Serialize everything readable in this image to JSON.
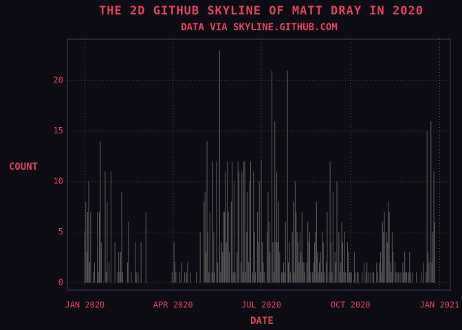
{
  "chart_data": {
    "type": "bar",
    "title": "THE 2D GITHUB SKYLINE OF MATT DRAY IN 2020",
    "subtitle": "DATA VIA SKYLINE.GITHUB.COM",
    "x_label": "DATE",
    "y_label": "COUNT",
    "color": "#5a5a5a",
    "grid": true,
    "xlim": [
      -18,
      377
    ],
    "ylim": [
      -0.75,
      24.1
    ],
    "yticks": [
      0,
      5,
      10,
      15,
      20
    ],
    "xticks": [
      {
        "value": 0,
        "label": "JAN 2020"
      },
      {
        "value": 91,
        "label": "APR 2020"
      },
      {
        "value": 182,
        "label": "JUL 2020"
      },
      {
        "value": 274,
        "label": "OCT 2020"
      },
      {
        "value": 366,
        "label": "JAN 2021"
      }
    ],
    "values": [
      5,
      8,
      3,
      7,
      10,
      2,
      7,
      0,
      0,
      1,
      2,
      0,
      0,
      7,
      1,
      7,
      14,
      4,
      0,
      0,
      0,
      11,
      1,
      8,
      0,
      2,
      0,
      11,
      0,
      0,
      0,
      4,
      0,
      0,
      1,
      3,
      1,
      3,
      9,
      1,
      0,
      0,
      0,
      0,
      2,
      6,
      0,
      0,
      1,
      0,
      0,
      0,
      4,
      1,
      0,
      1,
      0,
      0,
      4,
      0,
      0,
      0,
      0,
      7,
      0,
      0,
      0,
      0,
      0,
      0,
      0,
      0,
      0,
      0,
      0,
      0,
      0,
      0,
      0,
      0,
      0,
      0,
      0,
      0,
      0,
      0,
      0,
      0,
      0,
      0,
      1,
      0,
      4,
      2,
      1,
      0,
      0,
      0,
      1,
      0,
      2,
      0,
      0,
      1,
      0,
      1,
      2,
      0,
      0,
      1,
      0,
      0,
      0,
      0,
      0,
      1,
      0,
      0,
      0,
      5,
      0,
      0,
      0,
      8,
      9,
      3,
      14,
      5,
      1,
      7,
      0,
      1,
      12,
      5,
      1,
      0,
      12,
      2,
      0,
      23,
      1,
      4,
      3,
      7,
      7,
      11,
      4,
      12,
      7,
      3,
      0,
      8,
      12,
      1,
      10,
      1,
      0,
      3,
      12,
      11,
      0,
      2,
      11,
      1,
      12,
      12,
      1,
      5,
      9,
      2,
      10,
      12,
      0,
      1,
      11,
      5,
      1,
      0,
      7,
      4,
      10,
      1,
      12,
      4,
      2,
      1,
      0,
      0,
      5,
      9,
      6,
      3,
      0,
      21,
      4,
      1,
      16,
      4,
      11,
      4,
      8,
      3,
      0,
      1,
      1,
      2,
      1,
      6,
      0,
      21,
      2,
      4,
      1,
      0,
      5,
      8,
      1,
      10,
      7,
      5,
      4,
      2,
      5,
      3,
      7,
      2,
      2,
      1,
      0,
      2,
      6,
      4,
      5,
      1,
      0,
      1,
      2,
      4,
      5,
      8,
      3,
      1,
      2,
      3,
      1,
      5,
      4,
      1,
      0,
      2,
      7,
      0,
      1,
      12,
      4,
      1,
      9,
      0,
      3,
      2,
      10,
      0,
      5,
      1,
      2,
      6,
      4,
      1,
      5,
      1,
      0,
      4,
      3,
      1,
      1,
      1,
      0,
      0,
      3,
      1,
      0,
      1,
      1,
      0,
      0,
      0,
      1,
      0,
      2,
      0,
      1,
      2,
      0,
      1,
      0,
      1,
      0,
      1,
      1,
      0,
      0,
      2,
      1,
      0,
      2,
      3,
      1,
      6,
      5,
      7,
      0,
      5,
      4,
      8,
      7,
      2,
      1,
      5,
      3,
      0,
      2,
      1,
      0,
      1,
      1,
      0,
      1,
      0,
      2,
      1,
      3,
      1,
      1,
      0,
      1,
      3,
      1,
      0,
      1,
      0,
      0,
      0,
      1,
      0,
      0,
      0,
      0,
      1,
      0,
      2,
      0,
      0,
      1,
      15,
      3,
      2,
      0,
      16,
      2,
      5,
      11,
      6,
      0,
      0,
      0,
      0
    ]
  }
}
